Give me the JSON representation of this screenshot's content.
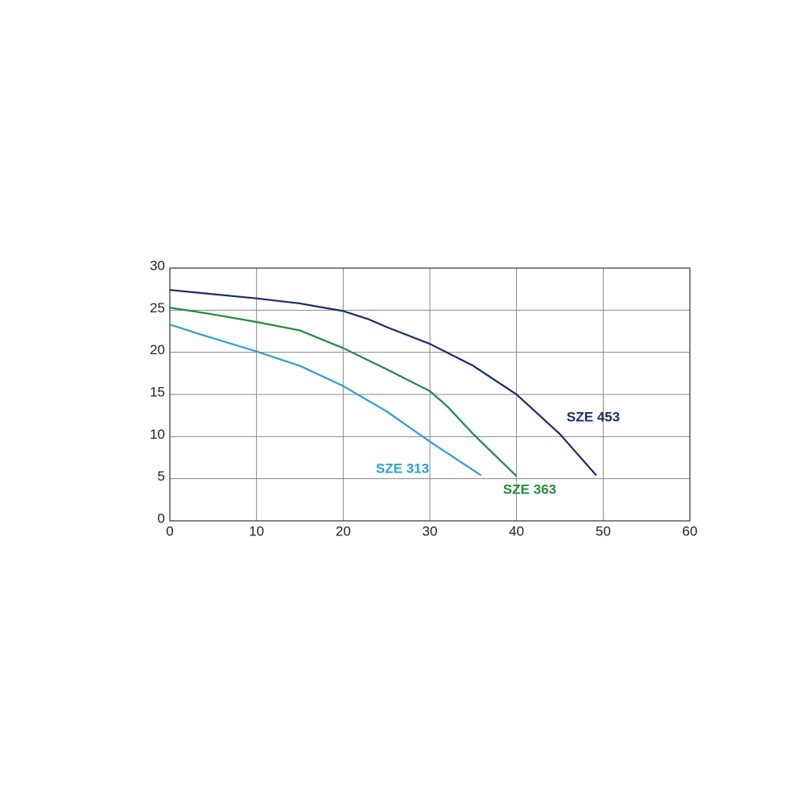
{
  "chart_data": {
    "type": "line",
    "xlim": [
      0,
      60
    ],
    "ylim": [
      0,
      30
    ],
    "xticks": [
      0,
      10,
      20,
      30,
      40,
      50,
      60
    ],
    "yticks": [
      0,
      5,
      10,
      15,
      20,
      25,
      30
    ],
    "grid": true,
    "series": [
      {
        "name": "SZE 453",
        "color": "#1b2a6b",
        "x": [
          0,
          10,
          15,
          20,
          23,
          25,
          30,
          35,
          40,
          45,
          49.2
        ],
        "values": [
          27.4,
          26.4,
          25.8,
          24.9,
          23.9,
          23.0,
          21.0,
          18.4,
          15.0,
          10.3,
          5.4
        ]
      },
      {
        "name": "SZE 363",
        "color": "#1e8c3a",
        "x": [
          0,
          5,
          10,
          15,
          20,
          25,
          30,
          32,
          35,
          40
        ],
        "values": [
          25.3,
          24.5,
          23.6,
          22.6,
          20.5,
          18.0,
          15.4,
          13.6,
          10.3,
          5.3
        ]
      },
      {
        "name": "SZE 313",
        "color": "#2a9fd8",
        "x": [
          0,
          3,
          10,
          15,
          20,
          25,
          30,
          35.9
        ],
        "values": [
          23.3,
          22.3,
          20.1,
          18.4,
          16.0,
          13.0,
          9.4,
          5.4
        ]
      }
    ]
  }
}
